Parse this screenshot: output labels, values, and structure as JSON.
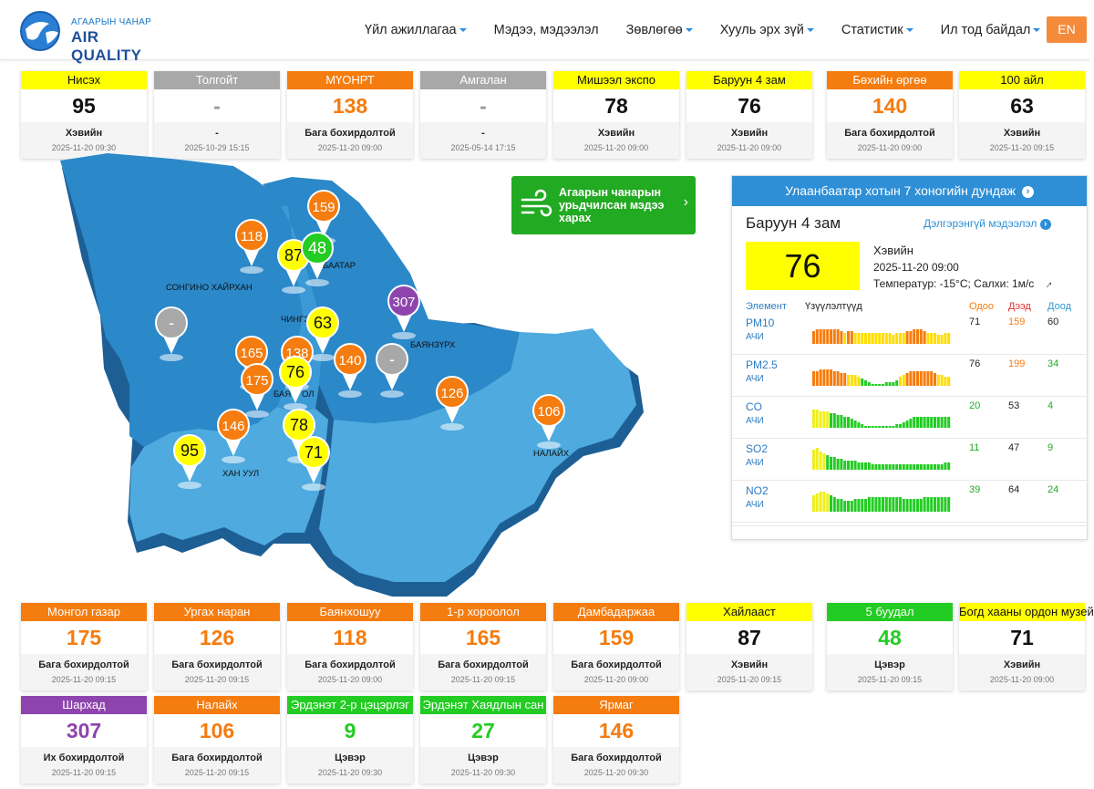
{
  "header": {
    "logo_small": "АГААРЫН ЧАНАР",
    "logo_big": "AIR QUALITY",
    "nav": [
      {
        "label": "Үйл ажиллагаа",
        "dropdown": true
      },
      {
        "label": "Мэдээ, мэдээлэл",
        "dropdown": false
      },
      {
        "label": "Зөвлөгөө",
        "dropdown": true
      },
      {
        "label": "Хууль эрх зүй",
        "dropdown": true
      },
      {
        "label": "Статистик",
        "dropdown": true
      },
      {
        "label": "Ил тод байдал",
        "dropdown": true
      }
    ],
    "lang_button": "EN"
  },
  "stations_top": [
    {
      "name": "Нисэх",
      "value": "95",
      "status": "Хэвийн",
      "time": "2025-11-20 09:30",
      "color": "yellow"
    },
    {
      "name": "Толгойт",
      "value": "-",
      "status": "-",
      "time": "2025-10-29 15:15",
      "color": "gray"
    },
    {
      "name": "МҮОНРТ",
      "value": "138",
      "status": "Бага бохирдолтой",
      "time": "2025-11-20 09:00",
      "color": "orange"
    },
    {
      "name": "Амгалан",
      "value": "-",
      "status": "-",
      "time": "2025-05-14 17:15",
      "color": "gray"
    },
    {
      "name": "Мишээл экспо",
      "value": "78",
      "status": "Хэвийн",
      "time": "2025-11-20 09:00",
      "color": "yellow"
    },
    {
      "name": "Баруун 4 зам",
      "value": "76",
      "status": "Хэвийн",
      "time": "2025-11-20 09:00",
      "color": "yellow"
    },
    {
      "name": "Бөхийн өргөө",
      "value": "140",
      "status": "Бага бохирдолтой",
      "time": "2025-11-20 09:00",
      "color": "orange"
    },
    {
      "name": "100 айл",
      "value": "63",
      "status": "Хэвийн",
      "time": "2025-11-20 09:15",
      "color": "yellow"
    }
  ],
  "stations_bottom": [
    {
      "name": "Монгол газар",
      "value": "175",
      "status": "Бага бохирдолтой",
      "time": "2025-11-20 09:15",
      "color": "orange"
    },
    {
      "name": "Ургах наран",
      "value": "126",
      "status": "Бага бохирдолтой",
      "time": "2025-11-20 09:15",
      "color": "orange"
    },
    {
      "name": "Баянхошуу",
      "value": "118",
      "status": "Бага бохирдолтой",
      "time": "2025-11-20 09:00",
      "color": "orange"
    },
    {
      "name": "1-р хороолол",
      "value": "165",
      "status": "Бага бохирдолтой",
      "time": "2025-11-20 09:15",
      "color": "orange"
    },
    {
      "name": "Дамбадаржаа",
      "value": "159",
      "status": "Бага бохирдолтой",
      "time": "2025-11-20 09:00",
      "color": "orange"
    },
    {
      "name": "Хайлааст",
      "value": "87",
      "status": "Хэвийн",
      "time": "2025-11-20 09:15",
      "color": "yellow"
    },
    {
      "name": "5 буудал",
      "value": "48",
      "status": "Цэвэр",
      "time": "2025-11-20 09:15",
      "color": "green"
    },
    {
      "name": "Богд хааны ордон музей",
      "value": "71",
      "status": "Хэвийн",
      "time": "2025-11-20 09:00",
      "color": "yellow"
    },
    {
      "name": "Шархад",
      "value": "307",
      "status": "Их бохирдолтой",
      "time": "2025-11-20 09:15",
      "color": "purple"
    },
    {
      "name": "Налайх",
      "value": "106",
      "status": "Бага бохирдолтой",
      "time": "2025-11-20 09:15",
      "color": "orange"
    },
    {
      "name": "Эрдэнэт 2-р цэцэрлэг",
      "value": "9",
      "status": "Цэвэр",
      "time": "2025-11-20 09:30",
      "color": "green"
    },
    {
      "name": "Эрдэнэт Хаядлын сан",
      "value": "27",
      "status": "Цэвэр",
      "time": "2025-11-20 09:30",
      "color": "green"
    },
    {
      "name": "Ярмаг",
      "value": "146",
      "status": "Бага бохирдолтой",
      "time": "2025-11-20 09:30",
      "color": "orange"
    }
  ],
  "map": {
    "district_labels": [
      "СОНГИНО ХАЙРХАН",
      "БААТАР",
      "ЧИНГЭ",
      "БАЯНЗҮРХ",
      "БАЯ",
      "ОЛ",
      "ХАН УУЛ",
      "НАЛАЙХ"
    ],
    "markers": [
      {
        "value": "159",
        "color": "#f57c0f"
      },
      {
        "value": "118",
        "color": "#f57c0f"
      },
      {
        "value": "87",
        "color": "#ffff00"
      },
      {
        "value": "48",
        "color": "#22cc22"
      },
      {
        "value": "307",
        "color": "#8e44ad"
      },
      {
        "value": "-",
        "color": "#a8a8a8"
      },
      {
        "value": "63",
        "color": "#ffff00"
      },
      {
        "value": "165",
        "color": "#f57c0f"
      },
      {
        "value": "138",
        "color": "#f57c0f"
      },
      {
        "value": "175",
        "color": "#f57c0f"
      },
      {
        "value": "76",
        "color": "#ffff00"
      },
      {
        "value": "140",
        "color": "#f57c0f"
      },
      {
        "value": "-",
        "color": "#a8a8a8"
      },
      {
        "value": "126",
        "color": "#f57c0f"
      },
      {
        "value": "106",
        "color": "#f57c0f"
      },
      {
        "value": "146",
        "color": "#f57c0f"
      },
      {
        "value": "78",
        "color": "#ffff00"
      },
      {
        "value": "95",
        "color": "#ffff00"
      },
      {
        "value": "71",
        "color": "#ffff00"
      }
    ]
  },
  "forecast": {
    "text": "Агаарын чанарын урьдчилсан мэдээ харах"
  },
  "panel": {
    "title": "Улаанбаатар хотын 7 хоногийн дундаж",
    "station": "Баруун 4 зам",
    "more": "Дэлгэрэнгүй мэдээлэл",
    "aqi": "76",
    "status": "Хэвийн",
    "time": "2025-11-20 09:00",
    "weather": "Температур: -15°C; Салхи: 1м/с",
    "col_element": "Элемент",
    "col_indicator": "Үзүүлэлтүүд",
    "col_now": "Одоо",
    "col_max": "Дээд",
    "col_min": "Доод",
    "rows": [
      {
        "name": "PM10",
        "station_label": "АЧИ",
        "now": "71",
        "max": "159",
        "min": "60",
        "now_color": "#222",
        "max_color": "#f57c0f",
        "min_color": "#222",
        "bars": [
          7,
          8,
          8,
          8,
          8,
          8,
          8,
          8,
          7,
          6,
          7,
          7,
          6,
          6,
          6,
          6,
          6,
          6,
          6,
          6,
          6,
          6,
          6,
          5,
          6,
          6,
          6,
          7,
          7,
          8,
          8,
          8,
          7,
          6,
          6,
          6,
          5,
          5,
          6,
          6
        ]
      },
      {
        "name": "PM2.5",
        "station_label": "АЧИ",
        "now": "76",
        "max": "199",
        "min": "34",
        "now_color": "#222",
        "max_color": "#f57c0f",
        "min_color": "#22aa22",
        "bars": [
          8,
          8,
          9,
          9,
          9,
          9,
          8,
          8,
          7,
          7,
          6,
          6,
          6,
          5,
          4,
          3,
          2,
          1,
          1,
          1,
          1,
          2,
          2,
          2,
          3,
          5,
          6,
          7,
          8,
          8,
          8,
          8,
          8,
          8,
          8,
          7,
          6,
          6,
          5,
          5
        ]
      },
      {
        "name": "CO",
        "station_label": "АЧИ",
        "now": "20",
        "max": "53",
        "min": "4",
        "now_color": "#22aa22",
        "max_color": "#222",
        "min_color": "#22aa22",
        "bars": [
          10,
          10,
          9,
          9,
          9,
          8,
          8,
          7,
          7,
          6,
          6,
          5,
          4,
          3,
          2,
          1,
          1,
          1,
          1,
          1,
          1,
          1,
          1,
          1,
          2,
          2,
          3,
          4,
          5,
          6,
          6,
          6,
          6,
          6,
          6,
          6,
          6,
          6,
          6,
          6
        ]
      },
      {
        "name": "SO2",
        "station_label": "АЧИ",
        "now": "11",
        "max": "47",
        "min": "9",
        "now_color": "#22aa22",
        "max_color": "#222",
        "min_color": "#22aa22",
        "bars": [
          11,
          12,
          10,
          9,
          8,
          7,
          7,
          6,
          6,
          5,
          5,
          5,
          5,
          4,
          4,
          4,
          4,
          3,
          3,
          3,
          3,
          3,
          3,
          3,
          3,
          3,
          3,
          3,
          3,
          3,
          3,
          3,
          3,
          3,
          3,
          3,
          3,
          3,
          4,
          4
        ]
      },
      {
        "name": "NO2",
        "station_label": "АЧИ",
        "now": "39",
        "max": "64",
        "min": "24",
        "now_color": "#22aa22",
        "max_color": "#222",
        "min_color": "#22aa22",
        "bars": [
          9,
          10,
          11,
          11,
          10,
          9,
          8,
          7,
          7,
          6,
          6,
          6,
          7,
          7,
          7,
          7,
          8,
          8,
          8,
          8,
          8,
          8,
          8,
          8,
          8,
          8,
          7,
          7,
          7,
          7,
          7,
          7,
          8,
          8,
          8,
          8,
          8,
          8,
          8,
          8
        ]
      }
    ]
  },
  "colors": {
    "orange": "#f57c0f",
    "yellow": "#ffff00",
    "green": "#22cc22",
    "purple": "#8e44ad",
    "gray": "#a8a8a8",
    "map_dark": "#2b88c9",
    "map_light": "#4eaadf",
    "accent_blue": "#2e8fd6"
  }
}
